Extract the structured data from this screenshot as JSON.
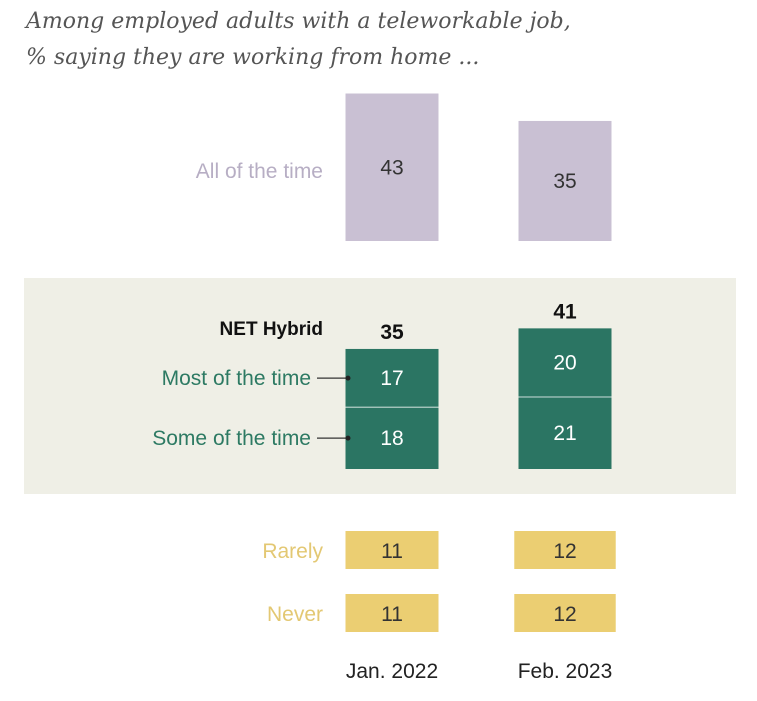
{
  "title_line1": "Among employed adults with a teleworkable job,",
  "title_line2": "% saying they are working from home ...",
  "colors": {
    "all": "#c9c0d3",
    "allLabel": "#b7aec4",
    "hybrid": "#2b7563",
    "hybridLabel": "#2d7a63",
    "rarely": "#ebce72",
    "rarelyLabel": "#e3c873",
    "band": "#efefe6",
    "text": "#333333"
  },
  "chart_data": {
    "type": "bar",
    "title": "Among employed adults with a teleworkable job, % saying they are working from home ...",
    "categories": [
      "Jan. 2022",
      "Feb. 2023"
    ],
    "series": [
      {
        "name": "All of the time",
        "values": [
          43,
          35
        ]
      },
      {
        "name": "Most of the time",
        "values": [
          17,
          20
        ]
      },
      {
        "name": "Some of the time",
        "values": [
          18,
          21
        ]
      },
      {
        "name": "Rarely",
        "values": [
          11,
          12
        ]
      },
      {
        "name": "Never",
        "values": [
          11,
          12
        ]
      }
    ],
    "net": {
      "name": "NET Hybrid",
      "values": [
        35,
        41
      ]
    }
  }
}
